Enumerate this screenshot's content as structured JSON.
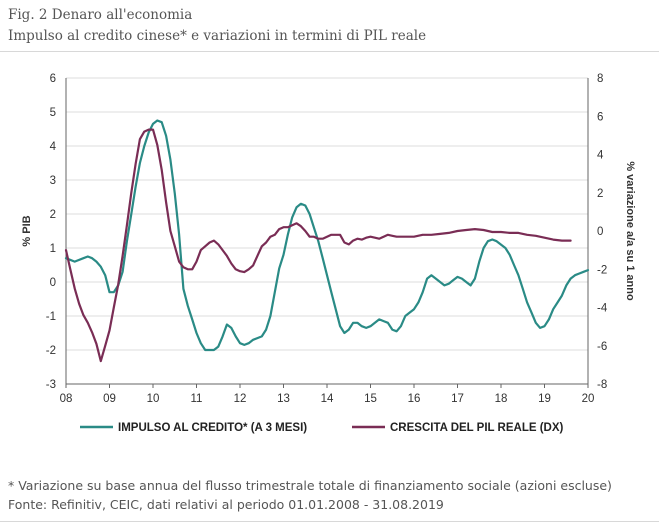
{
  "header": {
    "title": "Fig. 2 Denaro all'economia",
    "subtitle": "Impulso al credito cinese* e variazioni in termini di PIL reale"
  },
  "footer": {
    "note": "* Variazione su base annua del flusso trimestrale totale di finanziamento sociale (azioni escluse)",
    "source": "Fonte: Refinitiv, CEIC, dati relativi al periodo 01.01.2008 - 31.08.2019"
  },
  "colors": {
    "impulso": "#2a8b86",
    "pil": "#7a2d55",
    "grid": "#dcdcdc"
  },
  "chart_data": {
    "type": "line",
    "title": "",
    "xlabel": "",
    "ylabel": "% PIB",
    "ylabel_right": "% variazione a/a su 1 anno",
    "xlim": [
      8,
      20
    ],
    "ylim": [
      -3,
      6
    ],
    "ylim_right": [
      -8,
      8
    ],
    "x_ticks": [
      "08",
      "09",
      "10",
      "11",
      "12",
      "13",
      "14",
      "15",
      "16",
      "17",
      "18",
      "19",
      "20"
    ],
    "y_ticks": [
      "6",
      "5",
      "4",
      "3",
      "2",
      "1",
      "0",
      "-1",
      "-2",
      "-3"
    ],
    "y_ticks_right": [
      "8",
      "6",
      "4",
      "2",
      "0",
      "-2",
      "-4",
      "-6",
      "-8"
    ],
    "grid": "horizontal",
    "legend_position": "bottom",
    "series": [
      {
        "name": "IMPULSO AL CREDITO* (A 3 MESI)",
        "axis": "left",
        "x": [
          8.0,
          8.2,
          8.4,
          8.5,
          8.6,
          8.7,
          8.8,
          8.9,
          9.0,
          9.1,
          9.2,
          9.3,
          9.4,
          9.5,
          9.6,
          9.7,
          9.8,
          9.9,
          10.0,
          10.1,
          10.2,
          10.3,
          10.4,
          10.5,
          10.6,
          10.7,
          10.8,
          10.9,
          11.0,
          11.1,
          11.2,
          11.3,
          11.4,
          11.5,
          11.6,
          11.7,
          11.8,
          11.9,
          12.0,
          12.1,
          12.2,
          12.3,
          12.4,
          12.5,
          12.6,
          12.7,
          12.8,
          12.9,
          13.0,
          13.1,
          13.2,
          13.3,
          13.4,
          13.5,
          13.6,
          13.7,
          13.8,
          13.9,
          14.0,
          14.1,
          14.2,
          14.3,
          14.4,
          14.5,
          14.6,
          14.7,
          14.8,
          14.9,
          15.0,
          15.1,
          15.2,
          15.3,
          15.4,
          15.5,
          15.6,
          15.7,
          15.8,
          15.9,
          16.0,
          16.1,
          16.2,
          16.3,
          16.4,
          16.5,
          16.6,
          16.7,
          16.8,
          16.9,
          17.0,
          17.1,
          17.2,
          17.3,
          17.4,
          17.5,
          17.6,
          17.7,
          17.8,
          17.9,
          18.0,
          18.1,
          18.2,
          18.3,
          18.4,
          18.5,
          18.6,
          18.7,
          18.8,
          18.9,
          19.0,
          19.1,
          19.2,
          19.3,
          19.4,
          19.5,
          19.6,
          19.7,
          19.8,
          19.9,
          20.0
        ],
        "values": [
          0.7,
          0.6,
          0.7,
          0.75,
          0.7,
          0.6,
          0.45,
          0.2,
          -0.3,
          -0.3,
          -0.1,
          0.3,
          1.2,
          2.0,
          2.8,
          3.5,
          4.0,
          4.4,
          4.65,
          4.75,
          4.7,
          4.3,
          3.6,
          2.6,
          1.4,
          -0.2,
          -0.7,
          -1.1,
          -1.5,
          -1.8,
          -2.0,
          -2.0,
          -2.0,
          -1.9,
          -1.6,
          -1.25,
          -1.35,
          -1.6,
          -1.8,
          -1.85,
          -1.8,
          -1.7,
          -1.65,
          -1.6,
          -1.4,
          -1.0,
          -0.3,
          0.4,
          0.8,
          1.4,
          1.9,
          2.2,
          2.3,
          2.25,
          2.0,
          1.6,
          1.2,
          0.7,
          0.2,
          -0.3,
          -0.8,
          -1.3,
          -1.5,
          -1.4,
          -1.2,
          -1.2,
          -1.3,
          -1.35,
          -1.3,
          -1.2,
          -1.1,
          -1.15,
          -1.2,
          -1.4,
          -1.45,
          -1.3,
          -1.0,
          -0.9,
          -0.8,
          -0.6,
          -0.3,
          0.1,
          0.2,
          0.1,
          0.0,
          -0.1,
          -0.05,
          0.05,
          0.15,
          0.1,
          0.0,
          -0.1,
          0.1,
          0.6,
          1.0,
          1.2,
          1.25,
          1.2,
          1.1,
          1.0,
          0.8,
          0.5,
          0.2,
          -0.2,
          -0.6,
          -0.9,
          -1.2,
          -1.35,
          -1.3,
          -1.1,
          -0.8,
          -0.6,
          -0.4,
          -0.1,
          0.1,
          0.2,
          0.25,
          0.3,
          0.35
        ]
      },
      {
        "name": "CRESCITA DEL PIL REALE (DX)",
        "axis": "right",
        "x": [
          8.0,
          8.1,
          8.2,
          8.3,
          8.4,
          8.5,
          8.6,
          8.7,
          8.8,
          8.9,
          9.0,
          9.1,
          9.2,
          9.3,
          9.4,
          9.5,
          9.6,
          9.7,
          9.8,
          9.9,
          10.0,
          10.1,
          10.2,
          10.3,
          10.4,
          10.5,
          10.6,
          10.7,
          10.8,
          10.9,
          11.0,
          11.1,
          11.2,
          11.3,
          11.4,
          11.5,
          11.6,
          11.7,
          11.8,
          11.9,
          12.0,
          12.1,
          12.2,
          12.3,
          12.4,
          12.5,
          12.6,
          12.7,
          12.8,
          12.9,
          13.0,
          13.1,
          13.2,
          13.3,
          13.4,
          13.5,
          13.6,
          13.7,
          13.8,
          13.9,
          14.0,
          14.1,
          14.2,
          14.3,
          14.4,
          14.5,
          14.6,
          14.7,
          14.8,
          14.9,
          15.0,
          15.1,
          15.2,
          15.3,
          15.4,
          15.5,
          15.6,
          15.7,
          15.8,
          15.9,
          16.0,
          16.2,
          16.4,
          16.6,
          16.8,
          17.0,
          17.2,
          17.4,
          17.6,
          17.8,
          18.0,
          18.2,
          18.4,
          18.6,
          18.8,
          19.0,
          19.2,
          19.4,
          19.6
        ],
        "values": [
          -1.0,
          -2.0,
          -3.0,
          -3.8,
          -4.4,
          -4.8,
          -5.3,
          -5.9,
          -6.8,
          -6.0,
          -5.2,
          -4.0,
          -2.8,
          -1.3,
          0.3,
          2.0,
          3.5,
          4.8,
          5.2,
          5.3,
          5.3,
          4.5,
          3.2,
          1.5,
          0.0,
          -0.8,
          -1.6,
          -1.9,
          -2.0,
          -2.0,
          -1.6,
          -1.0,
          -0.8,
          -0.6,
          -0.5,
          -0.7,
          -1.0,
          -1.3,
          -1.7,
          -2.0,
          -2.1,
          -2.15,
          -2.0,
          -1.8,
          -1.3,
          -0.8,
          -0.6,
          -0.3,
          -0.2,
          0.1,
          0.2,
          0.2,
          0.3,
          0.4,
          0.25,
          0.0,
          -0.3,
          -0.3,
          -0.4,
          -0.4,
          -0.3,
          -0.2,
          -0.2,
          -0.2,
          -0.6,
          -0.7,
          -0.5,
          -0.4,
          -0.45,
          -0.35,
          -0.3,
          -0.35,
          -0.4,
          -0.3,
          -0.2,
          -0.25,
          -0.3,
          -0.3,
          -0.3,
          -0.3,
          -0.3,
          -0.2,
          -0.2,
          -0.15,
          -0.1,
          0.0,
          0.05,
          0.1,
          0.05,
          -0.05,
          -0.05,
          -0.1,
          -0.1,
          -0.2,
          -0.25,
          -0.35,
          -0.45,
          -0.5,
          -0.5
        ]
      }
    ]
  }
}
